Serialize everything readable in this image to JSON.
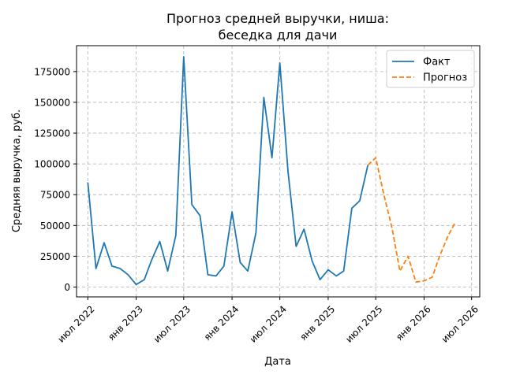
{
  "chart_data": {
    "type": "line",
    "title": [
      "Прогноз средней выручки, ниша:",
      "беседка для дачи"
    ],
    "xlabel": "Дата",
    "ylabel": "Средняя выручка, руб.",
    "x_ticks": [
      {
        "date": "2022-07-01",
        "label": "июл 2022"
      },
      {
        "date": "2023-01-01",
        "label": "янв 2023"
      },
      {
        "date": "2023-07-01",
        "label": "июл 2023"
      },
      {
        "date": "2024-01-01",
        "label": "янв 2024"
      },
      {
        "date": "2024-07-01",
        "label": "июл 2024"
      },
      {
        "date": "2025-01-01",
        "label": "янв 2025"
      },
      {
        "date": "2025-07-01",
        "label": "июл 2025"
      },
      {
        "date": "2026-01-01",
        "label": "янв 2026"
      },
      {
        "date": "2026-07-01",
        "label": "июл 2026"
      }
    ],
    "xlim": [
      "2022-05-19",
      "2026-08-01"
    ],
    "y_ticks": [
      0,
      25000,
      50000,
      75000,
      100000,
      125000,
      150000,
      175000
    ],
    "ylim": [
      -8000,
      196000
    ],
    "grid": true,
    "legend_position": "top-right",
    "series": [
      {
        "name": "Факт",
        "color": "#1f77b4",
        "style": "solid",
        "points": [
          {
            "x": "2022-07-01",
            "y": 85000
          },
          {
            "x": "2022-08-01",
            "y": 15000
          },
          {
            "x": "2022-09-01",
            "y": 36000
          },
          {
            "x": "2022-10-01",
            "y": 17000
          },
          {
            "x": "2022-11-01",
            "y": 15000
          },
          {
            "x": "2022-12-01",
            "y": 10000
          },
          {
            "x": "2023-01-01",
            "y": 2000
          },
          {
            "x": "2023-02-01",
            "y": 6000
          },
          {
            "x": "2023-03-01",
            "y": 22000
          },
          {
            "x": "2023-04-01",
            "y": 37000
          },
          {
            "x": "2023-05-01",
            "y": 13000
          },
          {
            "x": "2023-06-01",
            "y": 42000
          },
          {
            "x": "2023-07-01",
            "y": 187000
          },
          {
            "x": "2023-08-01",
            "y": 67000
          },
          {
            "x": "2023-09-01",
            "y": 58000
          },
          {
            "x": "2023-10-01",
            "y": 10000
          },
          {
            "x": "2023-11-01",
            "y": 9000
          },
          {
            "x": "2023-12-01",
            "y": 17000
          },
          {
            "x": "2024-01-01",
            "y": 61000
          },
          {
            "x": "2024-02-01",
            "y": 20000
          },
          {
            "x": "2024-03-01",
            "y": 13000
          },
          {
            "x": "2024-04-01",
            "y": 44000
          },
          {
            "x": "2024-05-01",
            "y": 154000
          },
          {
            "x": "2024-06-01",
            "y": 105000
          },
          {
            "x": "2024-07-01",
            "y": 182000
          },
          {
            "x": "2024-08-01",
            "y": 94000
          },
          {
            "x": "2024-09-01",
            "y": 33000
          },
          {
            "x": "2024-10-01",
            "y": 47000
          },
          {
            "x": "2024-11-01",
            "y": 21000
          },
          {
            "x": "2024-12-01",
            "y": 6000
          },
          {
            "x": "2025-01-01",
            "y": 14000
          },
          {
            "x": "2025-02-01",
            "y": 9000
          },
          {
            "x": "2025-03-01",
            "y": 13000
          },
          {
            "x": "2025-04-01",
            "y": 64000
          },
          {
            "x": "2025-05-01",
            "y": 70000
          },
          {
            "x": "2025-06-01",
            "y": 99000
          }
        ]
      },
      {
        "name": "Прогноз",
        "color": "#ff7f0e",
        "style": "dashed",
        "points": [
          {
            "x": "2025-06-01",
            "y": 99000
          },
          {
            "x": "2025-07-01",
            "y": 105000
          },
          {
            "x": "2025-08-01",
            "y": 75000
          },
          {
            "x": "2025-09-01",
            "y": 48000
          },
          {
            "x": "2025-10-01",
            "y": 13000
          },
          {
            "x": "2025-11-01",
            "y": 25000
          },
          {
            "x": "2025-12-01",
            "y": 4000
          },
          {
            "x": "2026-01-01",
            "y": 5000
          },
          {
            "x": "2026-02-01",
            "y": 8000
          },
          {
            "x": "2026-03-01",
            "y": 25000
          },
          {
            "x": "2026-04-01",
            "y": 41000
          },
          {
            "x": "2026-05-01",
            "y": 53000
          }
        ]
      }
    ]
  }
}
